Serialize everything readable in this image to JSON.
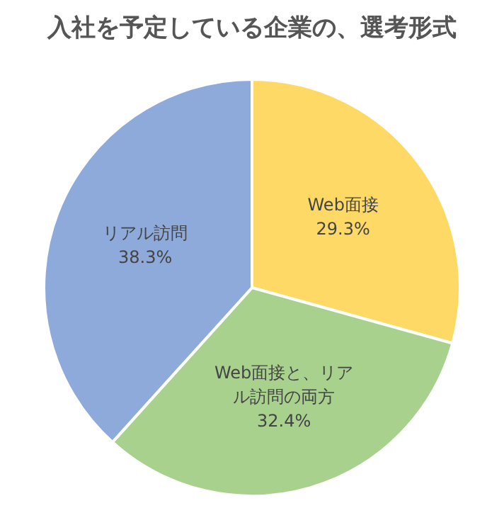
{
  "chart_data": {
    "type": "pie",
    "title": "入社を予定している企業の、選考形式",
    "categories": [
      "Web面接",
      "Web面接と、リアル訪問の両方",
      "リアル訪問"
    ],
    "values": [
      29.3,
      32.4,
      38.3
    ],
    "value_labels": [
      "29.3%",
      "32.4%",
      "38.3%"
    ],
    "colors": [
      "#ffd966",
      "#a9d18e",
      "#8eaadb"
    ],
    "legend": false
  }
}
